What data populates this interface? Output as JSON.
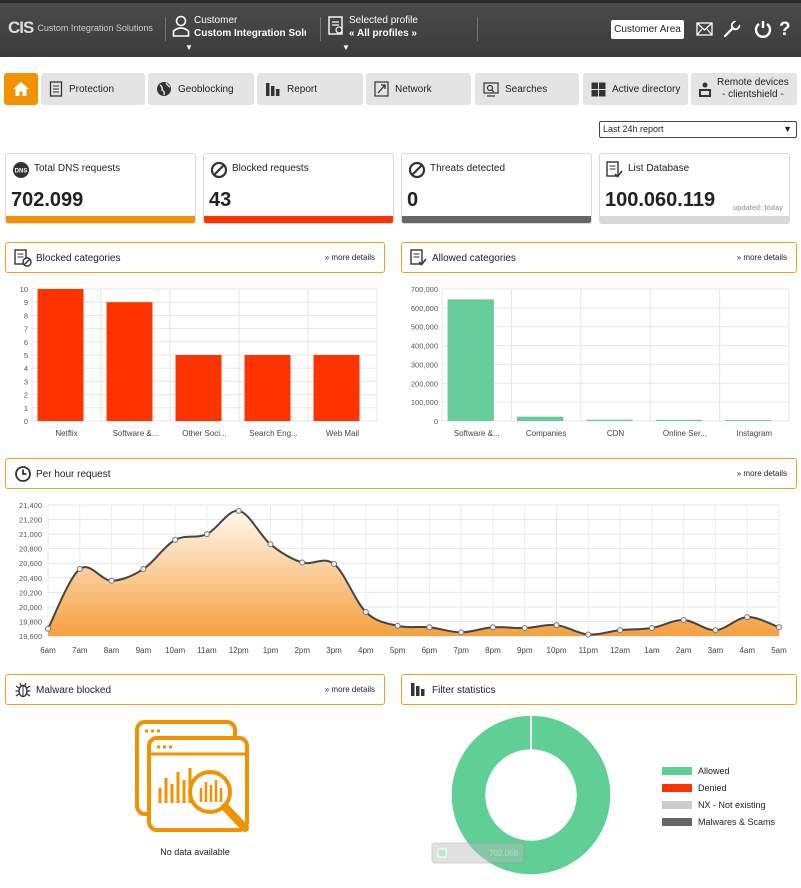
{
  "header": {
    "logo_mark": "CIS",
    "logo_text": "Custom Integration Solutions",
    "customer_label": "Customer",
    "customer_value": "Custom Integration Soluti",
    "profile_label": "Selected profile",
    "profile_value": "« All profiles »",
    "customer_area": "Customer Area"
  },
  "nav": [
    {
      "label": "Protection"
    },
    {
      "label": "Geoblocking"
    },
    {
      "label": "Report"
    },
    {
      "label": "Network"
    },
    {
      "label": "Searches"
    },
    {
      "label": "Active directory"
    },
    {
      "label": "Remote devices",
      "label2": "- clientshield -"
    }
  ],
  "report_select": {
    "value": "Last 24h report"
  },
  "cards": [
    {
      "label": "Total DNS requests",
      "value": "702.099",
      "color": "#f39200"
    },
    {
      "label": "Blocked requests",
      "value": "43",
      "color": "#ff3300"
    },
    {
      "label": "Threats detected",
      "value": "0",
      "color": "#666666"
    },
    {
      "label": "List Database",
      "value": "100.060.119",
      "color": "#d9d9d9",
      "updated": "updated: today"
    }
  ],
  "panels": {
    "blocked": {
      "title": "Blocked categories",
      "more": "» more details"
    },
    "allowed": {
      "title": "Allowed categories",
      "more": "» more details"
    },
    "perhour": {
      "title": "Per hour request",
      "more": "» more details"
    },
    "malware": {
      "title": "Malware blocked",
      "more": "» more details"
    },
    "filter": {
      "title": "Filter statistics"
    }
  },
  "chart_data": [
    {
      "type": "bar",
      "categories": [
        "Netflix",
        "Software &...",
        "Other Soci...",
        "Search Eng...",
        "Web Mail"
      ],
      "values": [
        10,
        9,
        5,
        5,
        5
      ],
      "ylim": [
        0,
        10
      ],
      "yticks": [
        0,
        1,
        2,
        3,
        4,
        5,
        6,
        7,
        8,
        9,
        10
      ],
      "color": "#ff3300"
    },
    {
      "type": "bar",
      "categories": [
        "Software &...",
        "Companies",
        "CDN",
        "Online Ser...",
        "Instagram"
      ],
      "values": [
        645000,
        23000,
        7000,
        6000,
        5000
      ],
      "ylim": [
        0,
        700000
      ],
      "yticks": [
        0,
        100000,
        200000,
        300000,
        400000,
        500000,
        600000,
        700000
      ],
      "color": "#66cc99"
    },
    {
      "type": "area",
      "categories": [
        "6am",
        "7am",
        "8am",
        "9am",
        "10am",
        "11am",
        "12pm",
        "1pm",
        "2pm",
        "3pm",
        "4pm",
        "5pm",
        "6pm",
        "7pm",
        "8pm",
        "9pm",
        "10pm",
        "11pm",
        "12am",
        "1am",
        "2am",
        "3am",
        "4am",
        "5am"
      ],
      "values": [
        19700,
        20520,
        20360,
        20520,
        20920,
        21000,
        21320,
        20860,
        20610,
        20590,
        19930,
        19740,
        19720,
        19650,
        19720,
        19710,
        19750,
        19620,
        19680,
        19710,
        19820,
        19680,
        19860,
        19720
      ],
      "ylim": [
        19600,
        21400
      ],
      "yticks": [
        19600,
        19800,
        20000,
        20200,
        20400,
        20600,
        20800,
        21000,
        21200,
        21400
      ],
      "color": "#f5a040"
    },
    {
      "type": "pie",
      "labels": [
        "Allowed",
        "Denied",
        "NX - Not existing",
        "Malwares & Scams"
      ],
      "values": [
        702056,
        43,
        0,
        0
      ],
      "colors": [
        "#5fcf95",
        "#ff3300",
        "#cccccc",
        "#666666"
      ],
      "tooltip": "702.056"
    }
  ],
  "malware": {
    "nodata": "No data available"
  }
}
